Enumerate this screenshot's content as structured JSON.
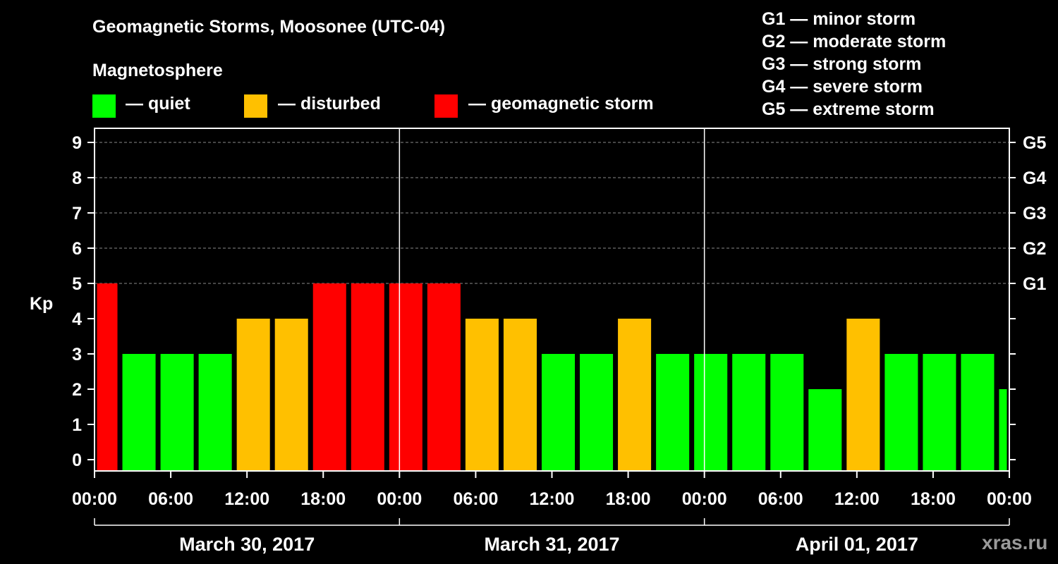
{
  "title": "Geomagnetic Storms, Moosonee (UTC-04)",
  "magnetosphere_label": "Magnetosphere",
  "legend": [
    {
      "label": "— quiet",
      "color": "#00ff00"
    },
    {
      "label": "— disturbed",
      "color": "#ffc000"
    },
    {
      "label": "— geomagnetic storm",
      "color": "#ff0000"
    }
  ],
  "g_scale_legend": [
    "G1 — minor storm",
    "G2 — moderate storm",
    "G3 — strong storm",
    "G4 — severe storm",
    "G5 — extreme storm"
  ],
  "watermark": "xras.ru",
  "colors": {
    "quiet": "#00ff00",
    "disturbed": "#ffc000",
    "storm": "#ff0000"
  },
  "chart_data": {
    "type": "bar",
    "ylabel": "Kp",
    "ylim": [
      0,
      9
    ],
    "yticks": [
      "0",
      "1",
      "2",
      "3",
      "4",
      "5",
      "6",
      "7",
      "8",
      "9"
    ],
    "right_ticks": [
      {
        "kp": 5,
        "label": "G1"
      },
      {
        "kp": 6,
        "label": "G2"
      },
      {
        "kp": 7,
        "label": "G3"
      },
      {
        "kp": 8,
        "label": "G4"
      },
      {
        "kp": 9,
        "label": "G5"
      }
    ],
    "x_range_hours": [
      0,
      72
    ],
    "x_tick_labels": [
      "00:00",
      "06:00",
      "12:00",
      "18:00",
      "00:00",
      "06:00",
      "12:00",
      "18:00",
      "00:00",
      "06:00",
      "12:00",
      "18:00",
      "00:00"
    ],
    "dates": [
      "March 30, 2017",
      "March 31, 2017",
      "April 01, 2017"
    ],
    "day_dividers_hours": [
      24,
      48
    ],
    "bars": [
      {
        "start": 0,
        "end": 2,
        "kp": 5,
        "level": "storm"
      },
      {
        "start": 2,
        "end": 5,
        "kp": 3,
        "level": "quiet"
      },
      {
        "start": 5,
        "end": 8,
        "kp": 3,
        "level": "quiet"
      },
      {
        "start": 8,
        "end": 11,
        "kp": 3,
        "level": "quiet"
      },
      {
        "start": 11,
        "end": 14,
        "kp": 4,
        "level": "disturbed"
      },
      {
        "start": 14,
        "end": 17,
        "kp": 4,
        "level": "disturbed"
      },
      {
        "start": 17,
        "end": 20,
        "kp": 5,
        "level": "storm"
      },
      {
        "start": 20,
        "end": 23,
        "kp": 5,
        "level": "storm"
      },
      {
        "start": 23,
        "end": 26,
        "kp": 5,
        "level": "storm"
      },
      {
        "start": 26,
        "end": 29,
        "kp": 5,
        "level": "storm"
      },
      {
        "start": 29,
        "end": 32,
        "kp": 4,
        "level": "disturbed"
      },
      {
        "start": 32,
        "end": 35,
        "kp": 4,
        "level": "disturbed"
      },
      {
        "start": 35,
        "end": 38,
        "kp": 3,
        "level": "quiet"
      },
      {
        "start": 38,
        "end": 41,
        "kp": 3,
        "level": "quiet"
      },
      {
        "start": 41,
        "end": 44,
        "kp": 4,
        "level": "disturbed"
      },
      {
        "start": 44,
        "end": 47,
        "kp": 3,
        "level": "quiet"
      },
      {
        "start": 47,
        "end": 50,
        "kp": 3,
        "level": "quiet"
      },
      {
        "start": 50,
        "end": 53,
        "kp": 3,
        "level": "quiet"
      },
      {
        "start": 53,
        "end": 56,
        "kp": 3,
        "level": "quiet"
      },
      {
        "start": 56,
        "end": 59,
        "kp": 2,
        "level": "quiet"
      },
      {
        "start": 59,
        "end": 62,
        "kp": 4,
        "level": "disturbed"
      },
      {
        "start": 62,
        "end": 65,
        "kp": 3,
        "level": "quiet"
      },
      {
        "start": 65,
        "end": 68,
        "kp": 3,
        "level": "quiet"
      },
      {
        "start": 68,
        "end": 71,
        "kp": 3,
        "level": "quiet"
      },
      {
        "start": 71,
        "end": 72,
        "kp": 2,
        "level": "quiet"
      }
    ]
  }
}
